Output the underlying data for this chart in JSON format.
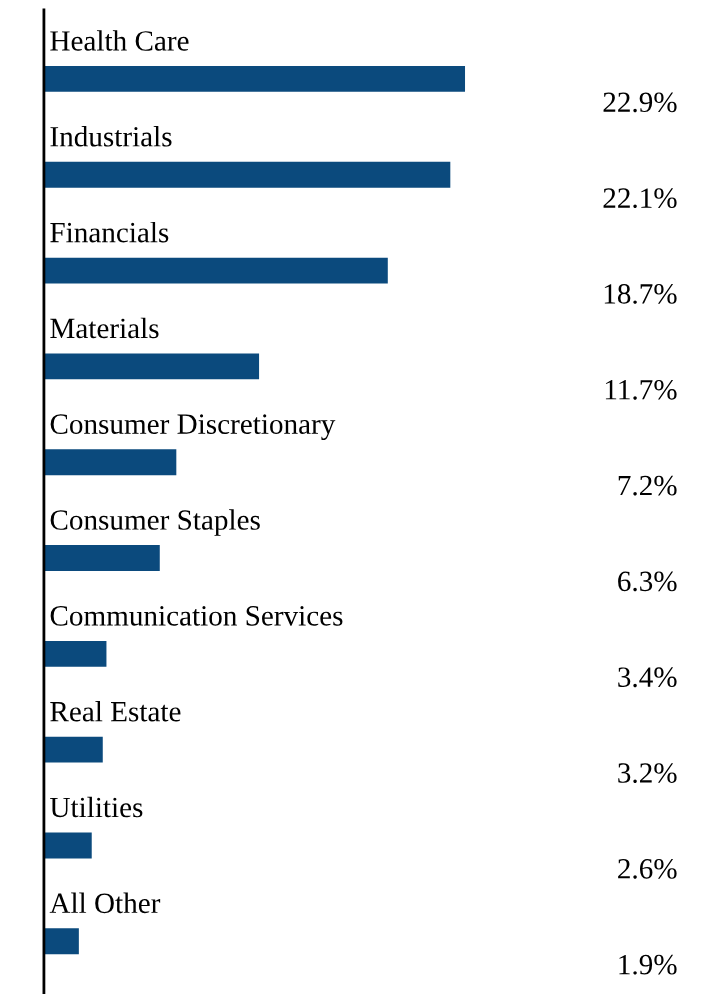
{
  "chart_data": {
    "type": "bar",
    "orientation": "horizontal",
    "categories": [
      "Health Care",
      "Industrials",
      "Financials",
      "Materials",
      "Consumer Discretionary",
      "Consumer Staples",
      "Communication Services",
      "Real Estate",
      "Utilities",
      "All Other"
    ],
    "values": [
      22.9,
      22.1,
      18.7,
      11.7,
      7.2,
      6.3,
      3.4,
      3.2,
      2.6,
      1.9
    ],
    "value_labels": [
      "22.9%",
      "22.1%",
      "18.7%",
      "11.7%",
      "7.2%",
      "6.3%",
      "3.4%",
      "3.2%",
      "2.6%",
      "1.9%"
    ],
    "color": "#0b4a7d"
  }
}
